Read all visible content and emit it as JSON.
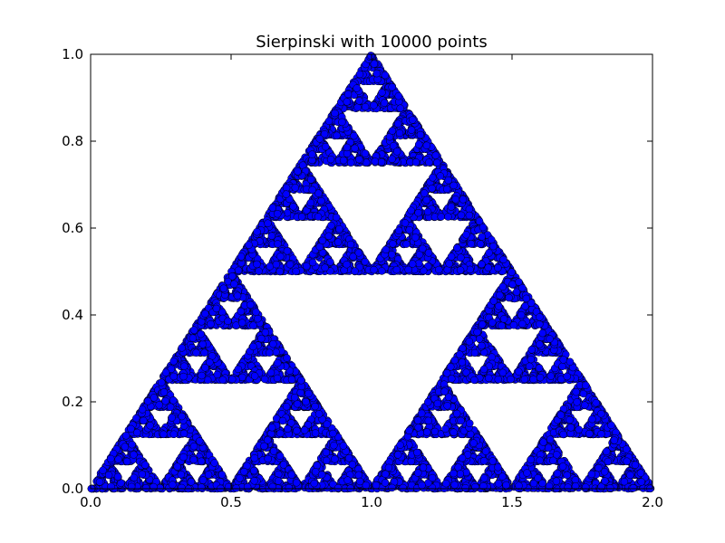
{
  "chart_data": {
    "type": "scatter",
    "title": "Sierpinski with 10000 points",
    "xlabel": "",
    "ylabel": "",
    "xlim": [
      0.0,
      2.0
    ],
    "ylim": [
      0.0,
      1.0
    ],
    "x_ticks": [
      "0.0",
      "0.5",
      "1.0",
      "1.5",
      "2.0"
    ],
    "y_ticks": [
      "0.0",
      "0.2",
      "0.4",
      "0.6",
      "0.8",
      "1.0"
    ],
    "grid": false,
    "legend": "none",
    "series": [
      {
        "point_count": 10000,
        "vertices": [
          [
            0.0,
            0.0
          ],
          [
            2.0,
            0.0
          ],
          [
            1.0,
            1.0
          ]
        ],
        "marker": "circle",
        "fill_color": "#0000ff",
        "edge_color": "#000000"
      }
    ]
  }
}
